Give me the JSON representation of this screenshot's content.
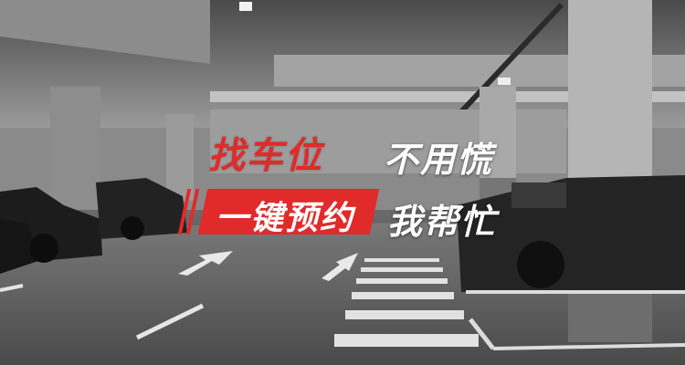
{
  "headline": {
    "line1_red": "找车位",
    "line1_white": "不用慌",
    "line2_box": "一键预约",
    "line2_white": "我帮忙"
  },
  "colors": {
    "accent_red": "#e12a2a",
    "text_white": "#ffffff",
    "photo_tone": "grayscale"
  }
}
